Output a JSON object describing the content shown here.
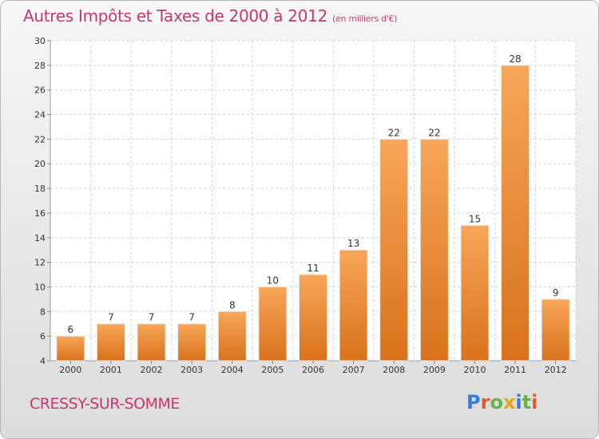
{
  "header": {
    "title": "Autres Impôts et Taxes de 2000 à 2012",
    "subtitle": "(en milliers d'€)"
  },
  "footer": {
    "commune": "CRESSY-SUR-SOMME"
  },
  "brand": {
    "letters": [
      {
        "char": "P",
        "color": "#3a7bd5"
      },
      {
        "char": "r",
        "color": "#e05a2a"
      },
      {
        "char": "o",
        "color": "#6ab04c"
      },
      {
        "char": "x",
        "color": "#e8a317"
      },
      {
        "char": "i",
        "color": "#3a7bd5"
      },
      {
        "char": "t",
        "color": "#6ab04c"
      },
      {
        "char": "i",
        "color": "#e05a2a"
      }
    ]
  },
  "chart_data": {
    "type": "bar",
    "categories": [
      "2000",
      "2001",
      "2002",
      "2003",
      "2004",
      "2005",
      "2006",
      "2007",
      "2008",
      "2009",
      "2010",
      "2011",
      "2012"
    ],
    "values": [
      6,
      7,
      7,
      7,
      8,
      10,
      11,
      13,
      22,
      22,
      15,
      28,
      9
    ],
    "ylim": [
      4,
      30
    ],
    "yticks": [
      4,
      6,
      8,
      10,
      12,
      14,
      16,
      18,
      20,
      22,
      24,
      26,
      28,
      30
    ],
    "grid": true,
    "colors": {
      "bar_light": "#f7a65a",
      "bar_dark": "#d9721b",
      "grid": "#d0d0d0",
      "axis_text": "#333333"
    }
  }
}
